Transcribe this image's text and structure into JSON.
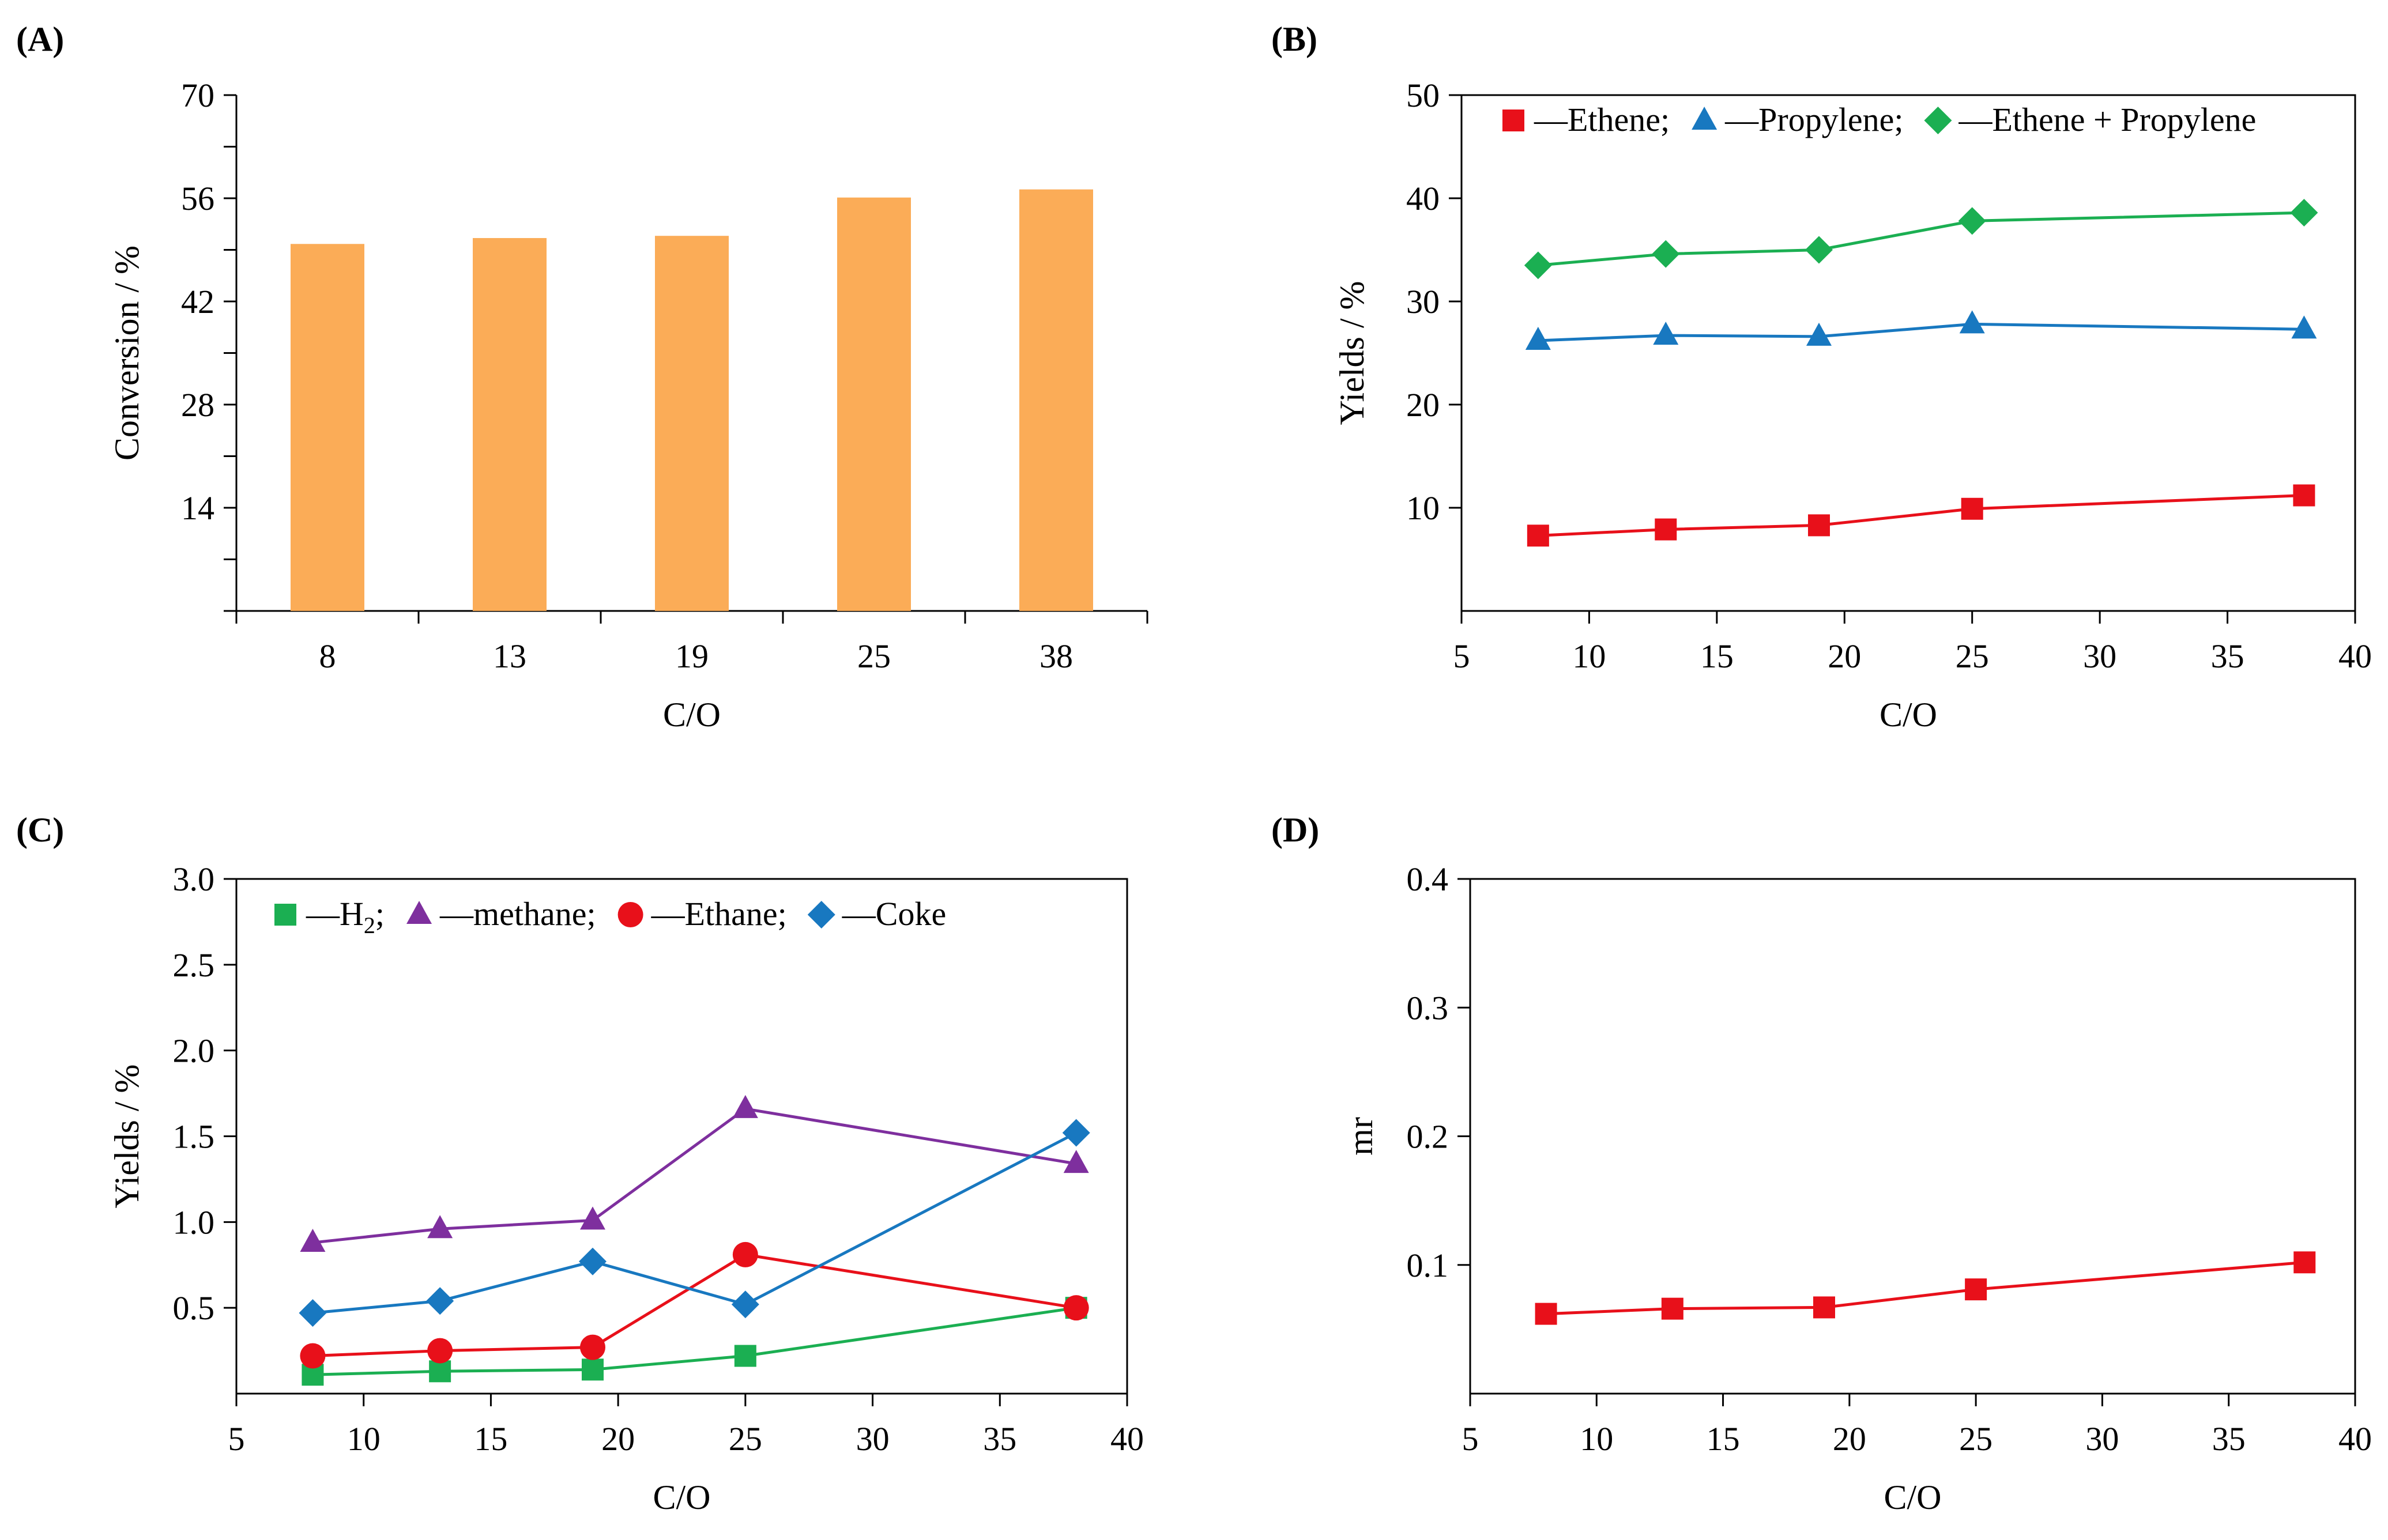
{
  "chart_data": [
    {
      "panel": "(A)",
      "type": "bar",
      "xlabel": "C/O",
      "ylabel": "Conversion / %",
      "categories": [
        "8",
        "13",
        "19",
        "25",
        "38"
      ],
      "values": [
        49.8,
        50.6,
        50.9,
        56.1,
        57.2
      ],
      "ylim": [
        0,
        70
      ],
      "yticks": [
        14,
        28,
        42,
        56,
        70
      ],
      "color": "#FBAC57",
      "grid": false
    },
    {
      "panel": "(B)",
      "type": "line",
      "xlabel": "C/O",
      "ylabel": "Yields / %",
      "xlim": [
        5,
        40
      ],
      "xticks": [
        5,
        10,
        15,
        20,
        25,
        30,
        35,
        40
      ],
      "ylim": [
        0,
        50
      ],
      "yticks": [
        10,
        20,
        30,
        40,
        50
      ],
      "x": [
        8,
        13,
        19,
        25,
        38
      ],
      "legend": {
        "position": "top",
        "prefix": "—",
        "sep": ";"
      },
      "series": [
        {
          "name": "Ethene",
          "marker": "square",
          "color": "#E8101A",
          "values": [
            7.3,
            7.9,
            8.3,
            9.9,
            11.2
          ]
        },
        {
          "name": "Propylene",
          "marker": "triangle",
          "color": "#1878C0",
          "values": [
            26.2,
            26.7,
            26.6,
            27.8,
            27.3
          ]
        },
        {
          "name": "Ethene + Propylene",
          "marker": "diamond",
          "color": "#1BAF52",
          "values": [
            33.5,
            34.6,
            35.0,
            37.8,
            38.6
          ]
        }
      ],
      "grid": false
    },
    {
      "panel": "(C)",
      "type": "line",
      "xlabel": "C/O",
      "ylabel": "Yields / %",
      "xlim": [
        5,
        40
      ],
      "xticks": [
        5,
        10,
        15,
        20,
        25,
        30,
        35,
        40
      ],
      "ylim": [
        0,
        3.0
      ],
      "yticks": [
        0.5,
        1.0,
        1.5,
        2.0,
        2.5,
        3.0
      ],
      "ytick_labels": [
        "0.5",
        "1.0",
        "1.5",
        "2.0",
        "2.5",
        "3.0"
      ],
      "x": [
        8,
        13,
        19,
        25,
        38
      ],
      "legend": {
        "position": "top-left",
        "prefix": "—",
        "sep": ";"
      },
      "series": [
        {
          "name": "H",
          "subscript": "2",
          "marker": "square",
          "color": "#1BAF52",
          "values": [
            0.11,
            0.13,
            0.14,
            0.22,
            0.5
          ]
        },
        {
          "name": "methane",
          "marker": "triangle",
          "color": "#7E2F9E",
          "values": [
            0.88,
            0.96,
            1.01,
            1.66,
            1.34
          ]
        },
        {
          "name": "Ethane",
          "marker": "circle",
          "color": "#E8101A",
          "values": [
            0.22,
            0.25,
            0.27,
            0.81,
            0.5
          ]
        },
        {
          "name": "Coke",
          "marker": "diamond",
          "color": "#1878C0",
          "values": [
            0.47,
            0.54,
            0.77,
            0.52,
            1.52
          ]
        }
      ],
      "grid": false
    },
    {
      "panel": "(D)",
      "type": "line",
      "xlabel": "C/O",
      "ylabel": "mr",
      "xlim": [
        5,
        40
      ],
      "xticks": [
        5,
        10,
        15,
        20,
        25,
        30,
        35,
        40
      ],
      "ylim": [
        0,
        0.4
      ],
      "yticks": [
        0.1,
        0.2,
        0.3,
        0.4
      ],
      "ytick_labels": [
        "0.1",
        "0.2",
        "0.3",
        "0.4"
      ],
      "x": [
        8,
        13,
        19,
        25,
        38
      ],
      "series": [
        {
          "name": "mr",
          "marker": "square",
          "color": "#E8101A",
          "values": [
            0.062,
            0.066,
            0.067,
            0.081,
            0.102
          ]
        }
      ],
      "grid": false
    }
  ]
}
